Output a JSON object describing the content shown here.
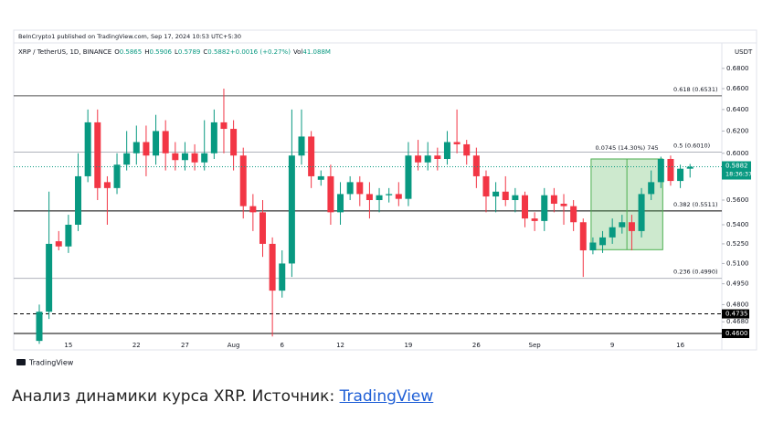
{
  "chart_data": {
    "type": "candlestick",
    "header": "BeInCrypto1 published on TradingView.com, Sep 17, 2024 10:53 UTC+5:30",
    "legend": {
      "symbol": "XRP / TetherUS, 1D, BINANCE",
      "items": [
        {
          "label": "O",
          "value": "0.5865"
        },
        {
          "label": "H",
          "value": "0.5906"
        },
        {
          "label": "L",
          "value": "0.5789"
        },
        {
          "label": "C",
          "value": "0.5882"
        },
        {
          "label": "",
          "value": "+0.0016 (+0.27%)"
        },
        {
          "label": "Vol",
          "value": "41.088M"
        }
      ]
    },
    "currency": "USDT",
    "log_scale": true,
    "grid": false,
    "up_color": "#089981",
    "down_color": "#f23645",
    "categories": [
      null,
      null,
      null,
      "15",
      null,
      null,
      null,
      null,
      null,
      null,
      "22",
      null,
      null,
      null,
      null,
      "27",
      null,
      null,
      null,
      null,
      "Aug",
      null,
      null,
      null,
      null,
      "6",
      null,
      null,
      null,
      null,
      null,
      "12",
      null,
      null,
      null,
      null,
      null,
      null,
      "19",
      null,
      null,
      null,
      null,
      null,
      null,
      "26",
      null,
      null,
      null,
      null,
      null,
      "Sep",
      null,
      null,
      null,
      null,
      null,
      null,
      null,
      "9",
      null,
      null,
      null,
      null,
      null,
      null,
      "16",
      null
    ],
    "open": [
      0.455,
      0.475,
      0.527,
      0.523,
      0.54,
      0.58,
      0.628,
      0.575,
      0.57,
      0.59,
      0.6,
      0.61,
      0.598,
      0.62,
      0.6,
      0.594,
      0.6,
      0.592,
      0.6,
      0.628,
      0.622,
      0.598,
      0.555,
      0.55,
      0.525,
      0.49,
      0.51,
      0.598,
      0.615,
      0.577,
      0.58,
      0.55,
      0.565,
      0.575,
      0.565,
      0.56,
      0.564,
      0.565,
      0.561,
      0.598,
      0.592,
      0.598,
      0.595,
      0.61,
      0.608,
      0.598,
      0.58,
      0.563,
      0.567,
      0.56,
      0.564,
      0.545,
      0.543,
      0.564,
      0.557,
      0.555,
      0.542,
      0.52,
      0.524,
      0.53,
      0.538,
      0.542,
      0.535,
      0.565,
      0.575,
      0.595,
      0.576,
      0.5865
    ],
    "high": [
      0.48,
      0.567,
      0.535,
      0.548,
      0.6,
      0.64,
      0.64,
      0.58,
      0.6,
      0.62,
      0.625,
      0.625,
      0.635,
      0.63,
      0.61,
      0.61,
      0.608,
      0.63,
      0.64,
      0.66,
      0.63,
      0.605,
      0.565,
      0.56,
      0.53,
      0.52,
      0.64,
      0.64,
      0.62,
      0.585,
      0.59,
      0.575,
      0.58,
      0.58,
      0.575,
      0.57,
      0.57,
      0.575,
      0.61,
      0.612,
      0.61,
      0.605,
      0.62,
      0.64,
      0.612,
      0.605,
      0.585,
      0.575,
      0.58,
      0.57,
      0.567,
      0.55,
      0.57,
      0.57,
      0.565,
      0.56,
      0.545,
      0.53,
      0.535,
      0.545,
      0.548,
      0.548,
      0.57,
      0.585,
      0.597,
      0.598,
      0.59,
      0.5906
    ],
    "low": [
      0.453,
      0.47,
      0.52,
      0.518,
      0.535,
      0.575,
      0.56,
      0.54,
      0.565,
      0.585,
      0.59,
      0.58,
      0.59,
      0.585,
      0.585,
      0.585,
      0.585,
      0.585,
      0.595,
      0.6,
      0.585,
      0.545,
      0.535,
      0.515,
      0.458,
      0.485,
      0.5,
      0.59,
      0.57,
      0.572,
      0.54,
      0.54,
      0.56,
      0.555,
      0.545,
      0.55,
      0.558,
      0.555,
      0.555,
      0.585,
      0.585,
      0.585,
      0.59,
      0.6,
      0.59,
      0.57,
      0.55,
      0.55,
      0.555,
      0.55,
      0.538,
      0.535,
      0.535,
      0.55,
      0.54,
      0.535,
      0.5,
      0.517,
      0.518,
      0.525,
      0.533,
      0.52,
      0.53,
      0.56,
      0.57,
      0.572,
      0.57,
      0.5789
    ],
    "close": [
      0.475,
      0.525,
      0.523,
      0.54,
      0.58,
      0.628,
      0.57,
      0.57,
      0.59,
      0.6,
      0.61,
      0.598,
      0.62,
      0.6,
      0.594,
      0.6,
      0.592,
      0.6,
      0.628,
      0.622,
      0.598,
      0.555,
      0.55,
      0.525,
      0.49,
      0.51,
      0.598,
      0.615,
      0.58,
      0.58,
      0.55,
      0.565,
      0.575,
      0.565,
      0.56,
      0.564,
      0.565,
      0.561,
      0.598,
      0.592,
      0.598,
      0.595,
      0.61,
      0.608,
      0.598,
      0.58,
      0.563,
      0.567,
      0.56,
      0.564,
      0.545,
      0.543,
      0.564,
      0.557,
      0.555,
      0.542,
      0.52,
      0.526,
      0.53,
      0.538,
      0.542,
      0.535,
      0.565,
      0.575,
      0.595,
      0.576,
      0.5865,
      0.5882
    ],
    "ylim": [
      0.449,
      0.706
    ],
    "yticks": [
      {
        "value": 0.68,
        "label": "0.6800"
      },
      {
        "value": 0.66,
        "label": "0.6600"
      },
      {
        "value": 0.64,
        "label": "0.6400"
      },
      {
        "value": 0.62,
        "label": "0.6200"
      },
      {
        "value": 0.6,
        "label": "0.6000"
      },
      {
        "value": 0.58,
        "label": "0.5800"
      },
      {
        "value": 0.56,
        "label": "0.5600"
      },
      {
        "value": 0.54,
        "label": "0.5400"
      },
      {
        "value": 0.525,
        "label": "0.5250"
      },
      {
        "value": 0.51,
        "label": "0.5100"
      },
      {
        "value": 0.495,
        "label": "0.4950"
      },
      {
        "value": 0.48,
        "label": "0.4800"
      },
      {
        "value": 0.468,
        "label": "0.4680"
      }
    ],
    "levels": [
      {
        "value": 0.6531,
        "label": "0.618 (0.6531)",
        "color": "#555555",
        "dash": false
      },
      {
        "value": 0.601,
        "label": "0.5 (0.6010)",
        "color": "#b0b3bb",
        "dash": false
      },
      {
        "value": 0.5511,
        "label": "0.382 (0.5511)",
        "color": "#000000",
        "dash": false
      },
      {
        "value": 0.499,
        "label": "0.236 (0.4990)",
        "color": "#b0b3bb",
        "dash": false
      },
      {
        "value": 0.4735,
        "label": "",
        "tag": "0.4735",
        "color": "#000000",
        "dash": true
      },
      {
        "value": 0.46,
        "label": "",
        "tag": "0.4600",
        "color": "#000000",
        "dash": false
      }
    ],
    "last_price": {
      "value": 0.5882,
      "label": "0.5882",
      "countdown": "18:36:37"
    },
    "measure": {
      "label": "0.0745 (14.30%) 745",
      "start_index": 57,
      "end_index": 64,
      "low": 0.5205,
      "high": 0.595
    },
    "attribution": "TradingView"
  },
  "caption": {
    "text": "Анализ динамики курса XRP. Источник: ",
    "link": "TradingView"
  }
}
